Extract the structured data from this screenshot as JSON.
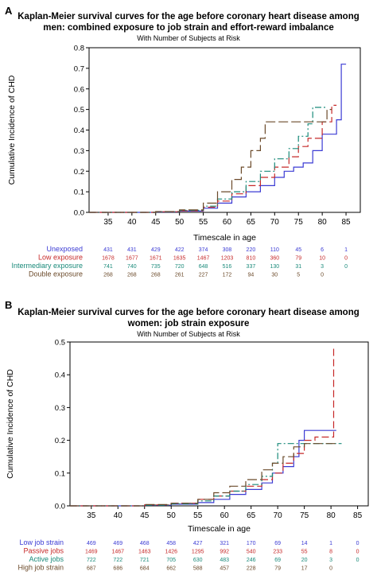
{
  "panels": [
    {
      "letter": "A",
      "title_line1": "Kaplan-Meier survival curves for the age before coronary heart disease among",
      "title_line2": "men: combined exposure to job strain and effort-reward imbalance",
      "subtitle": "With Number of Subjects at Risk"
    },
    {
      "letter": "B",
      "title_line1": "Kaplan-Meier survival curves for the age before coronary heart disease among",
      "title_line2": "women: job strain exposure",
      "subtitle": "With Number of Subjects at Risk"
    }
  ],
  "chart_data": [
    {
      "type": "line",
      "step": true,
      "xlabel": "Timescale in age",
      "ylabel": "Cumulative Incidence of CHD",
      "xlim": [
        31,
        88
      ],
      "ylim": [
        0,
        0.8
      ],
      "xticks": [
        35,
        40,
        45,
        50,
        55,
        60,
        65,
        70,
        75,
        80,
        85
      ],
      "yticks": [
        0.0,
        0.1,
        0.2,
        0.3,
        0.4,
        0.5,
        0.6,
        0.7,
        0.8
      ],
      "risk_table_ages": [
        35,
        40,
        45,
        50,
        55,
        60,
        65,
        70,
        75,
        80,
        85
      ],
      "series": [
        {
          "name": "Unexposed",
          "color": "#3b3bd4",
          "dash": "",
          "points": [
            [
              31,
              0
            ],
            [
              45,
              0.002
            ],
            [
              50,
              0.006
            ],
            [
              55,
              0.02
            ],
            [
              58,
              0.045
            ],
            [
              61,
              0.075
            ],
            [
              64,
              0.1
            ],
            [
              67,
              0.13
            ],
            [
              70,
              0.17
            ],
            [
              72,
              0.2
            ],
            [
              74,
              0.22
            ],
            [
              76,
              0.24
            ],
            [
              78,
              0.3
            ],
            [
              80,
              0.38
            ],
            [
              83,
              0.45
            ],
            [
              84,
              0.72
            ],
            [
              85,
              0.72
            ]
          ],
          "risk": [
            "431",
            "431",
            "429",
            "422",
            "374",
            "308",
            "220",
            "110",
            "45",
            "6",
            "1"
          ]
        },
        {
          "name": "Low exposure",
          "color": "#c62828",
          "dash": "9,4",
          "points": [
            [
              31,
              0
            ],
            [
              45,
              0.003
            ],
            [
              50,
              0.008
            ],
            [
              55,
              0.025
            ],
            [
              58,
              0.055
            ],
            [
              61,
              0.09
            ],
            [
              64,
              0.13
            ],
            [
              67,
              0.17
            ],
            [
              70,
              0.22
            ],
            [
              73,
              0.27
            ],
            [
              75,
              0.32
            ],
            [
              77,
              0.36
            ],
            [
              80,
              0.44
            ],
            [
              82,
              0.52
            ],
            [
              83,
              0.52
            ]
          ],
          "risk": [
            "1678",
            "1677",
            "1671",
            "1635",
            "1467",
            "1203",
            "810",
            "360",
            "79",
            "10",
            "0"
          ]
        },
        {
          "name": "Intermediary exposure",
          "color": "#1a8a7a",
          "dash": "8,3,2,3",
          "points": [
            [
              31,
              0
            ],
            [
              45,
              0.003
            ],
            [
              50,
              0.01
            ],
            [
              55,
              0.03
            ],
            [
              58,
              0.065
            ],
            [
              61,
              0.1
            ],
            [
              64,
              0.15
            ],
            [
              67,
              0.2
            ],
            [
              70,
              0.26
            ],
            [
              73,
              0.31
            ],
            [
              75,
              0.37
            ],
            [
              77,
              0.43
            ],
            [
              78,
              0.51
            ],
            [
              81,
              0.51
            ]
          ],
          "risk": [
            "741",
            "740",
            "735",
            "720",
            "648",
            "516",
            "337",
            "130",
            "31",
            "3",
            "0"
          ]
        },
        {
          "name": "Double exposure",
          "color": "#6b4a2a",
          "dash": "12,4",
          "points": [
            [
              31,
              0
            ],
            [
              45,
              0.004
            ],
            [
              50,
              0.012
            ],
            [
              55,
              0.045
            ],
            [
              58,
              0.1
            ],
            [
              61,
              0.16
            ],
            [
              63,
              0.22
            ],
            [
              65,
              0.3
            ],
            [
              67,
              0.36
            ],
            [
              68,
              0.44
            ],
            [
              72,
              0.44
            ],
            [
              75,
              0.44
            ],
            [
              81,
              0.5
            ],
            [
              82,
              0.5
            ]
          ],
          "risk": [
            "268",
            "268",
            "268",
            "261",
            "227",
            "172",
            "94",
            "30",
            "5",
            "0",
            ""
          ]
        }
      ]
    },
    {
      "type": "line",
      "step": true,
      "xlabel": "Timescale in age",
      "ylabel": "Cumulative Incidence of CHD",
      "xlim": [
        31,
        87
      ],
      "ylim": [
        0,
        0.5
      ],
      "xticks": [
        35,
        40,
        45,
        50,
        55,
        60,
        65,
        70,
        75,
        80,
        85
      ],
      "yticks": [
        0.0,
        0.1,
        0.2,
        0.3,
        0.4,
        0.5
      ],
      "risk_table_ages": [
        35,
        40,
        45,
        50,
        55,
        60,
        65,
        70,
        75,
        80,
        85
      ],
      "series": [
        {
          "name": "Low job strain",
          "color": "#3b3bd4",
          "dash": "",
          "points": [
            [
              31,
              0
            ],
            [
              45,
              0.002
            ],
            [
              50,
              0.005
            ],
            [
              55,
              0.01
            ],
            [
              58,
              0.02
            ],
            [
              61,
              0.035
            ],
            [
              64,
              0.05
            ],
            [
              67,
              0.07
            ],
            [
              69,
              0.1
            ],
            [
              71,
              0.12
            ],
            [
              73,
              0.15
            ],
            [
              74,
              0.2
            ],
            [
              75,
              0.23
            ],
            [
              80,
              0.23
            ],
            [
              81,
              0.23
            ]
          ],
          "risk": [
            "469",
            "469",
            "468",
            "458",
            "427",
            "321",
            "170",
            "69",
            "14",
            "1",
            "0"
          ]
        },
        {
          "name": "Passive jobs",
          "color": "#c62828",
          "dash": "9,4",
          "points": [
            [
              31,
              0
            ],
            [
              45,
              0.003
            ],
            [
              50,
              0.008
            ],
            [
              55,
              0.02
            ],
            [
              58,
              0.03
            ],
            [
              61,
              0.045
            ],
            [
              64,
              0.06
            ],
            [
              67,
              0.08
            ],
            [
              69,
              0.1
            ],
            [
              71,
              0.13
            ],
            [
              73,
              0.16
            ],
            [
              75,
              0.2
            ],
            [
              77,
              0.21
            ],
            [
              80,
              0.21
            ],
            [
              80.5,
              0.48
            ],
            [
              81,
              0.48
            ]
          ],
          "risk": [
            "1469",
            "1467",
            "1463",
            "1426",
            "1295",
            "992",
            "540",
            "233",
            "55",
            "8",
            "0"
          ]
        },
        {
          "name": "Active jobs",
          "color": "#1a8a7a",
          "dash": "8,3,2,3",
          "points": [
            [
              31,
              0
            ],
            [
              45,
              0.002
            ],
            [
              50,
              0.006
            ],
            [
              55,
              0.015
            ],
            [
              58,
              0.03
            ],
            [
              61,
              0.045
            ],
            [
              64,
              0.065
            ],
            [
              67,
              0.09
            ],
            [
              69,
              0.13
            ],
            [
              70,
              0.19
            ],
            [
              77,
              0.19
            ],
            [
              82,
              0.19
            ]
          ],
          "risk": [
            "722",
            "722",
            "721",
            "705",
            "630",
            "483",
            "246",
            "69",
            "20",
            "3",
            "0"
          ]
        },
        {
          "name": "High job strain",
          "color": "#6b4a2a",
          "dash": "12,4",
          "points": [
            [
              31,
              0
            ],
            [
              45,
              0.004
            ],
            [
              50,
              0.008
            ],
            [
              55,
              0.02
            ],
            [
              58,
              0.04
            ],
            [
              61,
              0.06
            ],
            [
              64,
              0.08
            ],
            [
              67,
              0.11
            ],
            [
              69,
              0.13
            ],
            [
              71,
              0.15
            ],
            [
              73,
              0.18
            ],
            [
              75,
              0.19
            ],
            [
              80,
              0.19
            ],
            [
              81,
              0.19
            ]
          ],
          "risk": [
            "687",
            "686",
            "684",
            "662",
            "588",
            "457",
            "228",
            "79",
            "17",
            "0",
            ""
          ]
        }
      ]
    }
  ]
}
